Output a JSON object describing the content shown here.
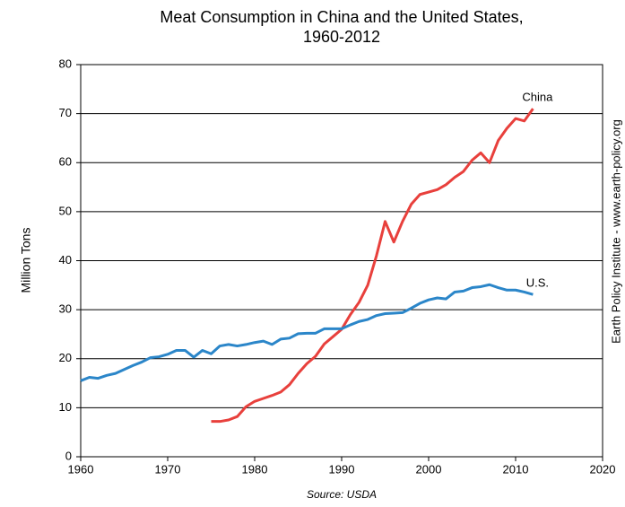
{
  "chart_data": {
    "type": "line",
    "title": [
      "Meat Consumption in China and the United States,",
      "1960-2012"
    ],
    "y_label": "Million Tons",
    "side_note": "Earth Policy Institute - www.earth-policy.org",
    "source": "Source: USDA",
    "x": [
      1960,
      1961,
      1962,
      1963,
      1964,
      1965,
      1966,
      1967,
      1968,
      1969,
      1970,
      1971,
      1972,
      1973,
      1974,
      1975,
      1976,
      1977,
      1978,
      1979,
      1980,
      1981,
      1982,
      1983,
      1984,
      1985,
      1986,
      1987,
      1988,
      1989,
      1990,
      1991,
      1992,
      1993,
      1994,
      1995,
      1996,
      1997,
      1998,
      1999,
      2000,
      2001,
      2002,
      2003,
      2004,
      2005,
      2006,
      2007,
      2008,
      2009,
      2010,
      2011,
      2012
    ],
    "series": [
      {
        "name": "China",
        "color": "#e8403c",
        "values": [
          null,
          null,
          null,
          null,
          null,
          null,
          null,
          null,
          null,
          null,
          null,
          null,
          null,
          null,
          null,
          7.2,
          7.2,
          7.5,
          8.2,
          10.2,
          11.3,
          11.9,
          12.5,
          13.2,
          14.7,
          17,
          19,
          20.5,
          23,
          24.5,
          26,
          29,
          31.5,
          35,
          41,
          48,
          43.8,
          48,
          51.5,
          53.5,
          54,
          54.5,
          55.5,
          57,
          58.2,
          60.5,
          62,
          60,
          64.5,
          67,
          69,
          68.5,
          71
        ]
      },
      {
        "name": "U.S.",
        "color": "#2b86c9",
        "values": [
          15.5,
          16.2,
          16,
          16.6,
          17,
          17.8,
          18.6,
          19.3,
          20.2,
          20.4,
          20.9,
          21.7,
          21.7,
          20.3,
          21.7,
          21,
          22.6,
          22.9,
          22.6,
          22.9,
          23.3,
          23.6,
          22.9,
          24,
          24.2,
          25.1,
          25.2,
          25.2,
          26.1,
          26.1,
          26.1,
          26.9,
          27.6,
          28,
          28.8,
          29.2,
          29.3,
          29.4,
          30.3,
          31.3,
          32,
          32.4,
          32.2,
          33.6,
          33.8,
          34.5,
          34.7,
          35.1,
          34.5,
          34,
          34,
          33.6,
          33.1
        ]
      }
    ],
    "xlim": [
      1960,
      2020
    ],
    "xticks": [
      1960,
      1970,
      1980,
      1990,
      2000,
      2010,
      2020
    ],
    "ylim": [
      0,
      80
    ],
    "yticks": [
      0,
      10,
      20,
      30,
      40,
      50,
      60,
      70,
      80
    ],
    "grid": true
  }
}
